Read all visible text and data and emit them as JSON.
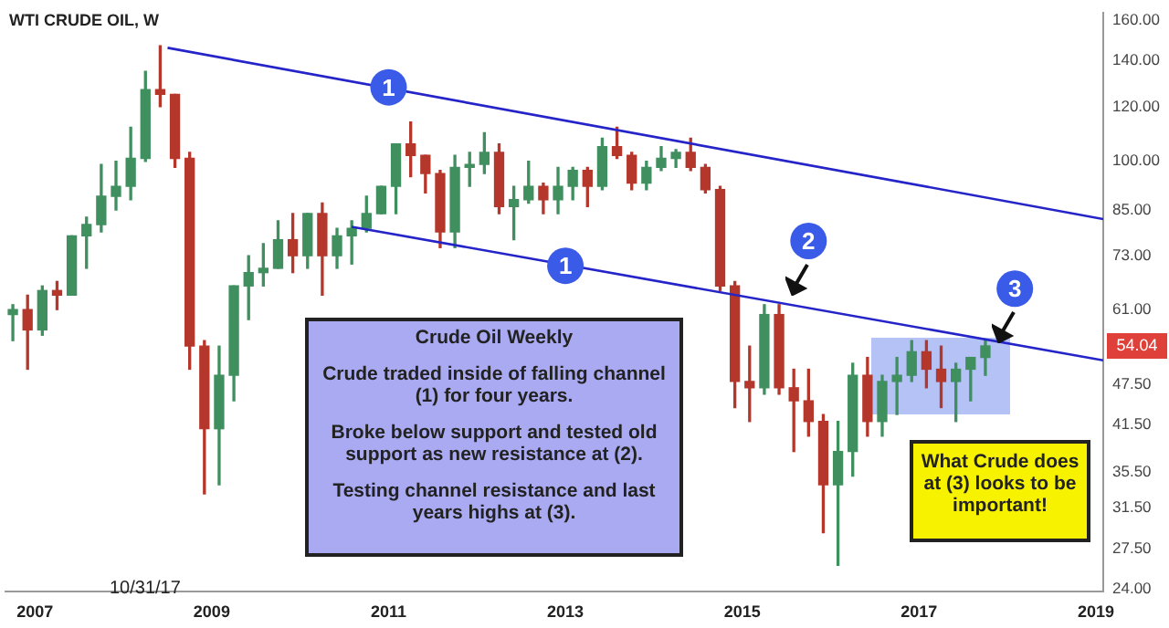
{
  "chart_data": {
    "type": "candlestick",
    "title": "WTI CRUDE OIL, W",
    "x": [
      "2006-10",
      "2006-12",
      "2007-02",
      "2007-04",
      "2007-06",
      "2007-08",
      "2007-10",
      "2007-12",
      "2008-02",
      "2008-04",
      "2008-06",
      "2008-08",
      "2008-10",
      "2008-12",
      "2009-02",
      "2009-04",
      "2009-06",
      "2009-08",
      "2009-10",
      "2009-12",
      "2010-02",
      "2010-04",
      "2010-06",
      "2010-08",
      "2010-10",
      "2010-12",
      "2011-02",
      "2011-04",
      "2011-06",
      "2011-08",
      "2011-10",
      "2011-12",
      "2012-02",
      "2012-04",
      "2012-06",
      "2012-08",
      "2012-10",
      "2012-12",
      "2013-02",
      "2013-04",
      "2013-06",
      "2013-08",
      "2013-10",
      "2013-12",
      "2014-02",
      "2014-04",
      "2014-06",
      "2014-08",
      "2014-10",
      "2014-12",
      "2015-02",
      "2015-04",
      "2015-06",
      "2015-08",
      "2015-10",
      "2015-12",
      "2016-02",
      "2016-04",
      "2016-06",
      "2016-08",
      "2016-10",
      "2016-12",
      "2017-02",
      "2017-04",
      "2017-06",
      "2017-08",
      "2017-10"
    ],
    "ohlc": [
      [
        60,
        62,
        55,
        61
      ],
      [
        61,
        64,
        50,
        57
      ],
      [
        57,
        66,
        56,
        65
      ],
      [
        65,
        67,
        61,
        64
      ],
      [
        64,
        78,
        64,
        78
      ],
      [
        78,
        83,
        70,
        81
      ],
      [
        81,
        99,
        79,
        89
      ],
      [
        89,
        100,
        85,
        92
      ],
      [
        92,
        112,
        88,
        101
      ],
      [
        101,
        135,
        100,
        127
      ],
      [
        127,
        147,
        120,
        125
      ],
      [
        125,
        125,
        98,
        101
      ],
      [
        101,
        103,
        50,
        54
      ],
      [
        54,
        55,
        33,
        41
      ],
      [
        41,
        54,
        34,
        49
      ],
      [
        49,
        66,
        45,
        66
      ],
      [
        66,
        73,
        59,
        69
      ],
      [
        69,
        76,
        66,
        70
      ],
      [
        70,
        82,
        70,
        77
      ],
      [
        77,
        84,
        69,
        73
      ],
      [
        73,
        84,
        70,
        84
      ],
      [
        84,
        87,
        64,
        73
      ],
      [
        73,
        80,
        70,
        78
      ],
      [
        78,
        82,
        71,
        80
      ],
      [
        80,
        89,
        79,
        84
      ],
      [
        84,
        92,
        84,
        92
      ],
      [
        92,
        106,
        84,
        106
      ],
      [
        106,
        114,
        95,
        102
      ],
      [
        102,
        102,
        90,
        96
      ],
      [
        96,
        97,
        75,
        79
      ],
      [
        79,
        102,
        75,
        98
      ],
      [
        98,
        103,
        92,
        99
      ],
      [
        99,
        110,
        96,
        103
      ],
      [
        103,
        106,
        84,
        86
      ],
      [
        86,
        92,
        77,
        88
      ],
      [
        88,
        100,
        87,
        92
      ],
      [
        92,
        93,
        84,
        88
      ],
      [
        88,
        98,
        84,
        92
      ],
      [
        92,
        98,
        88,
        97
      ],
      [
        97,
        98,
        86,
        92
      ],
      [
        92,
        108,
        91,
        105
      ],
      [
        105,
        112,
        101,
        102
      ],
      [
        102,
        103,
        91,
        93
      ],
      [
        93,
        100,
        91,
        98
      ],
      [
        98,
        105,
        97,
        101
      ],
      [
        101,
        104,
        98,
        103
      ],
      [
        103,
        108,
        97,
        98
      ],
      [
        98,
        99,
        90,
        91
      ],
      [
        91,
        92,
        65,
        66
      ],
      [
        66,
        67,
        44,
        48
      ],
      [
        48,
        54,
        42,
        47
      ],
      [
        47,
        62,
        46,
        60
      ],
      [
        60,
        62,
        46,
        47
      ],
      [
        47,
        50,
        38,
        45
      ],
      [
        45,
        50,
        40,
        42
      ],
      [
        42,
        43,
        29,
        34
      ],
      [
        34,
        42,
        26,
        38
      ],
      [
        38,
        51,
        35,
        49
      ],
      [
        49,
        52,
        40,
        42
      ],
      [
        42,
        49,
        40,
        48
      ],
      [
        48,
        52,
        43,
        49
      ],
      [
        49,
        55,
        48,
        53
      ],
      [
        53,
        55,
        47,
        50
      ],
      [
        50,
        54,
        44,
        48
      ],
      [
        48,
        51,
        42,
        50
      ],
      [
        50,
        52,
        45,
        52
      ],
      [
        52,
        55,
        49,
        54.04
      ]
    ],
    "colors": [
      "#3f8f5f",
      "#b5372b",
      "#3f8f5f",
      "#b5372b",
      "#3f8f5f",
      "#3f8f5f",
      "#3f8f5f",
      "#3f8f5f",
      "#3f8f5f",
      "#3f8f5f",
      "#b5372b",
      "#b5372b",
      "#b5372b",
      "#b5372b",
      "#3f8f5f",
      "#3f8f5f",
      "#3f8f5f",
      "#3f8f5f",
      "#3f8f5f",
      "#b5372b",
      "#3f8f5f",
      "#b5372b",
      "#3f8f5f",
      "#3f8f5f",
      "#3f8f5f",
      "#3f8f5f",
      "#3f8f5f",
      "#b5372b",
      "#b5372b",
      "#b5372b",
      "#3f8f5f",
      "#3f8f5f",
      "#3f8f5f",
      "#b5372b",
      "#3f8f5f",
      "#3f8f5f",
      "#b5372b",
      "#3f8f5f",
      "#3f8f5f",
      "#b5372b",
      "#3f8f5f",
      "#b5372b",
      "#b5372b",
      "#3f8f5f",
      "#3f8f5f",
      "#3f8f5f",
      "#b5372b",
      "#b5372b",
      "#b5372b",
      "#b5372b",
      "#b5372b",
      "#3f8f5f",
      "#b5372b",
      "#b5372b",
      "#b5372b",
      "#b5372b",
      "#3f8f5f",
      "#3f8f5f",
      "#b5372b",
      "#3f8f5f",
      "#3f8f5f",
      "#3f8f5f",
      "#b5372b",
      "#b5372b",
      "#3f8f5f",
      "#3f8f5f",
      "#3f8f5f"
    ],
    "series": [
      {
        "type": "line",
        "color": "#2424c8",
        "x": [
          "2008-07",
          "2019-02"
        ],
        "values": [
          146,
          82.5
        ]
      },
      {
        "type": "line",
        "color": "#2424c8",
        "x": [
          "2010-08",
          "2019-02"
        ],
        "values": [
          80.4,
          51.5
        ]
      }
    ],
    "log": "y",
    "xlim": [
      "2006-09",
      "2019-02"
    ],
    "xticks": [
      "2007",
      "2009",
      "2011",
      "2013",
      "2015",
      "2017",
      "2019"
    ],
    "ylim": [
      23.8,
      164
    ],
    "yticks": [
      {
        "value": 24,
        "label": "24.00"
      },
      {
        "value": 27.5,
        "label": "27.50"
      },
      {
        "value": 31.5,
        "label": "31.50"
      },
      {
        "value": 35.5,
        "label": "35.50"
      },
      {
        "value": 41.5,
        "label": "41.50"
      },
      {
        "value": 47.5,
        "label": "47.50"
      },
      {
        "value": 61,
        "label": "61.00"
      },
      {
        "value": 73,
        "label": "73.00"
      },
      {
        "value": 85,
        "label": "85.00"
      },
      {
        "value": 100,
        "label": "100.00"
      },
      {
        "value": 120,
        "label": "120.00"
      },
      {
        "value": 140,
        "label": "140.00"
      },
      {
        "value": 160,
        "label": "160.00"
      }
    ],
    "annotations": [
      "Crude Oil Weekly",
      "Crude traded inside of falling channel (1) for four years.",
      "Broke below support and tested old support as new resistance at (2).",
      "Testing channel resistance and last years highs at (3).",
      "What Crude does at (3) looks to be important!",
      "10/31/17",
      "54.04",
      {
        "text": "1",
        "x": "2011-01",
        "y": 128
      },
      {
        "text": "1",
        "x": "2013-01",
        "y": 70.6
      },
      {
        "text": "2",
        "x": "2015-10",
        "y": 76.7
      },
      {
        "text": "3",
        "x": "2018-02",
        "y": 65.4
      }
    ],
    "grid": false,
    "legend": false
  }
}
